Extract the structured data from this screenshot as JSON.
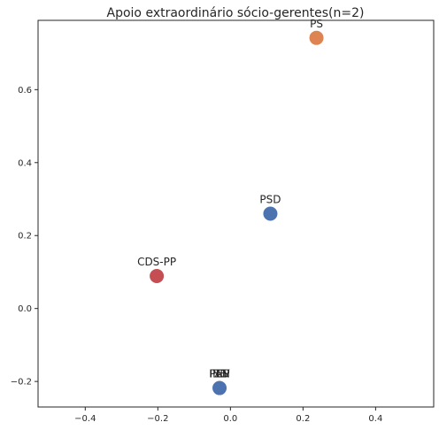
{
  "chart_data": {
    "type": "scatter",
    "title": "Apoio extraordinário sócio-gerentes(n=2)",
    "xlabel": "",
    "ylabel": "",
    "xlim": [
      -0.53,
      0.56
    ],
    "ylim": [
      -0.27,
      0.79
    ],
    "x_ticks": [
      -0.4,
      -0.2,
      0.0,
      0.2,
      0.4
    ],
    "x_tick_labels": [
      "−0.4",
      "−0.2",
      "0.0",
      "0.2",
      "0.4"
    ],
    "y_ticks": [
      -0.2,
      0.0,
      0.2,
      0.4,
      0.6
    ],
    "y_tick_labels": [
      "−0.2",
      "0.0",
      "0.2",
      "0.4",
      "0.6"
    ],
    "grid": false,
    "points": [
      {
        "label": "PS",
        "x": 0.237,
        "y": 0.742,
        "color": "#dd8452"
      },
      {
        "label": "PSD",
        "x": 0.11,
        "y": 0.26,
        "color": "#4c72b0"
      },
      {
        "label": "CDS-PP",
        "x": -0.203,
        "y": 0.089,
        "color": "#c44e52"
      },
      {
        "label": "BE",
        "x": -0.03,
        "y": -0.218,
        "color": "#4c72b0"
      },
      {
        "label": "PCP",
        "x": -0.03,
        "y": -0.218,
        "color": "#4c72b0"
      },
      {
        "label": "PEV",
        "x": -0.03,
        "y": -0.218,
        "color": "#4c72b0"
      },
      {
        "label": "PAN",
        "x": -0.03,
        "y": -0.218,
        "color": "#4c72b0"
      }
    ]
  }
}
